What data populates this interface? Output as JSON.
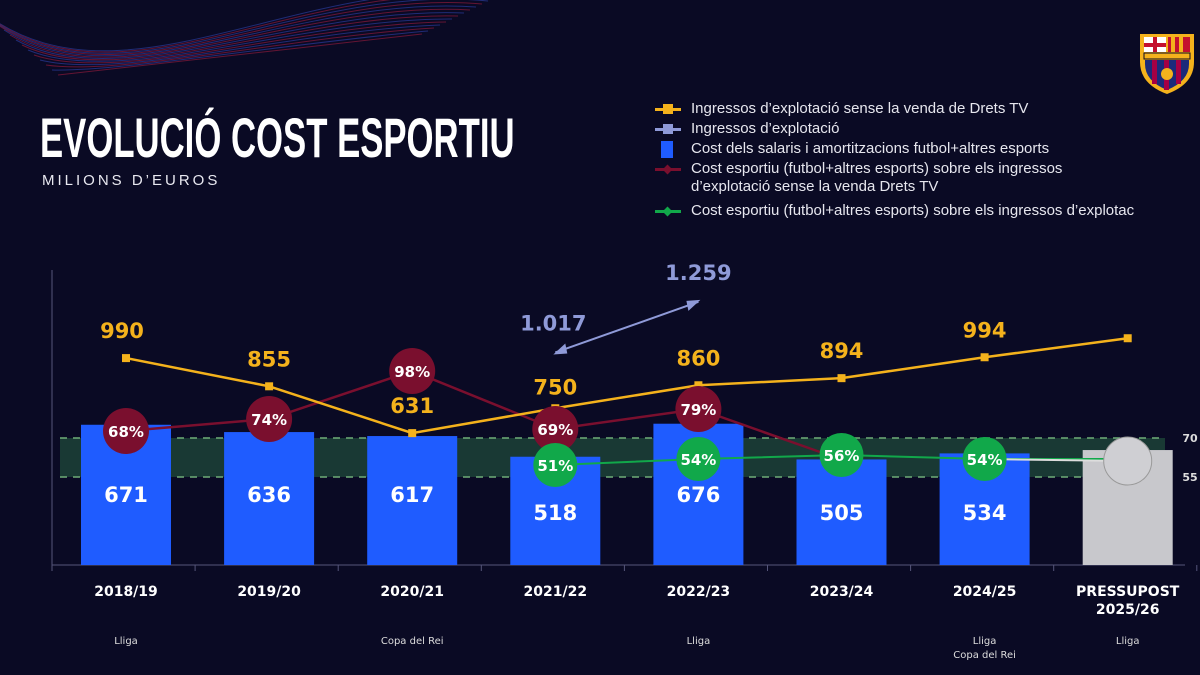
{
  "header": {
    "title": "EVOLUCIÓ COST ESPORTIU",
    "subtitle": "MILIONS D’EUROS"
  },
  "logo": {
    "text": "FCB"
  },
  "colors": {
    "background": "#0a0a24",
    "income_no_tv": "#f4b21c",
    "income": "#8f9ad8",
    "cost_bars": "#1f5cff",
    "budget_bar": "#c8c8cc",
    "pct_no_tv": "#7a0f2e",
    "pct_income": "#11a84a",
    "band": "#1f4a3a"
  },
  "legend": [
    {
      "label": "Ingressos d’explotació sense la venda de Drets TV",
      "icon": "line-square-marker",
      "color": "#f4b21c"
    },
    {
      "label": "Ingressos d’explotació",
      "icon": "line-square-marker",
      "color": "#8f9ad8"
    },
    {
      "label": "Cost dels salaris i amortitzacions futbol+altres esports",
      "icon": "bar-square",
      "color": "#1f5cff"
    },
    {
      "label": "Cost esportiu (futbol+altres esports) sobre els ingressos",
      "label2": "d’explotació sense la venda Drets TV",
      "icon": "line-diamond-marker",
      "color": "#7a0f2e"
    },
    {
      "label": "Cost esportiu (futbol+altres esports) sobre els ingressos d’explotac",
      "icon": "line-diamond-marker",
      "color": "#11a84a"
    }
  ],
  "chart_data": {
    "type": "bar",
    "title": "EVOLUCIÓ COST ESPORTIU",
    "ylabel": "MILIONS D’EUROS",
    "categories": [
      "2018/19",
      "2019/20",
      "2020/21",
      "2021/22",
      "2022/23",
      "2023/24",
      "2024/25",
      "PRESSUPOST\n2025/26"
    ],
    "category_notes": [
      "Lliga",
      "",
      "Copa del Rei",
      "",
      "Lliga",
      "",
      "Lliga\nCopa del Rei",
      "Lliga"
    ],
    "grid": false,
    "legend_position": "top-right",
    "series": [
      {
        "name": "Cost dels salaris i amortitzacions futbol+altres esports",
        "type": "bar",
        "values": [
          671,
          636,
          617,
          518,
          676,
          505,
          534,
          550
        ],
        "labels": [
          "671",
          "636",
          "617",
          "518",
          "676",
          "505",
          "534",
          ""
        ]
      },
      {
        "name": "Ingressos d’explotació sense la venda de Drets TV",
        "type": "line",
        "values": [
          990,
          855,
          631,
          750,
          860,
          894,
          994,
          1085
        ],
        "labels": [
          "990",
          "855",
          "631",
          "750",
          "860",
          "894",
          "994",
          ""
        ]
      },
      {
        "name": "Ingressos d’explotació",
        "type": "line",
        "values": [
          null,
          null,
          null,
          1017,
          1259,
          null,
          null,
          null
        ],
        "labels": [
          "",
          "",
          "",
          "1.017",
          "1.259",
          "",
          "",
          ""
        ]
      },
      {
        "name": "Cost esportiu (futbol+altres esports) sobre els ingressos d’explotació sense la venda Drets TV",
        "type": "line",
        "unit": "%",
        "values": [
          68,
          74,
          98,
          69,
          79,
          null,
          null,
          null
        ],
        "labels": [
          "68%",
          "74%",
          "98%",
          "69%",
          "79%",
          "",
          "",
          ""
        ]
      },
      {
        "name": "Cost esportiu (futbol+altres esports) sobre els ingressos d’explotació",
        "type": "line",
        "unit": "%",
        "values": [
          null,
          null,
          null,
          51,
          54,
          56,
          54,
          54
        ],
        "labels": [
          "",
          "",
          "",
          "51%",
          "54%",
          "56%",
          "54%",
          ""
        ]
      }
    ],
    "target_band": {
      "min": 55,
      "max": 70,
      "labels": [
        "70",
        "55"
      ]
    },
    "ylim": [
      0,
      1300
    ]
  }
}
